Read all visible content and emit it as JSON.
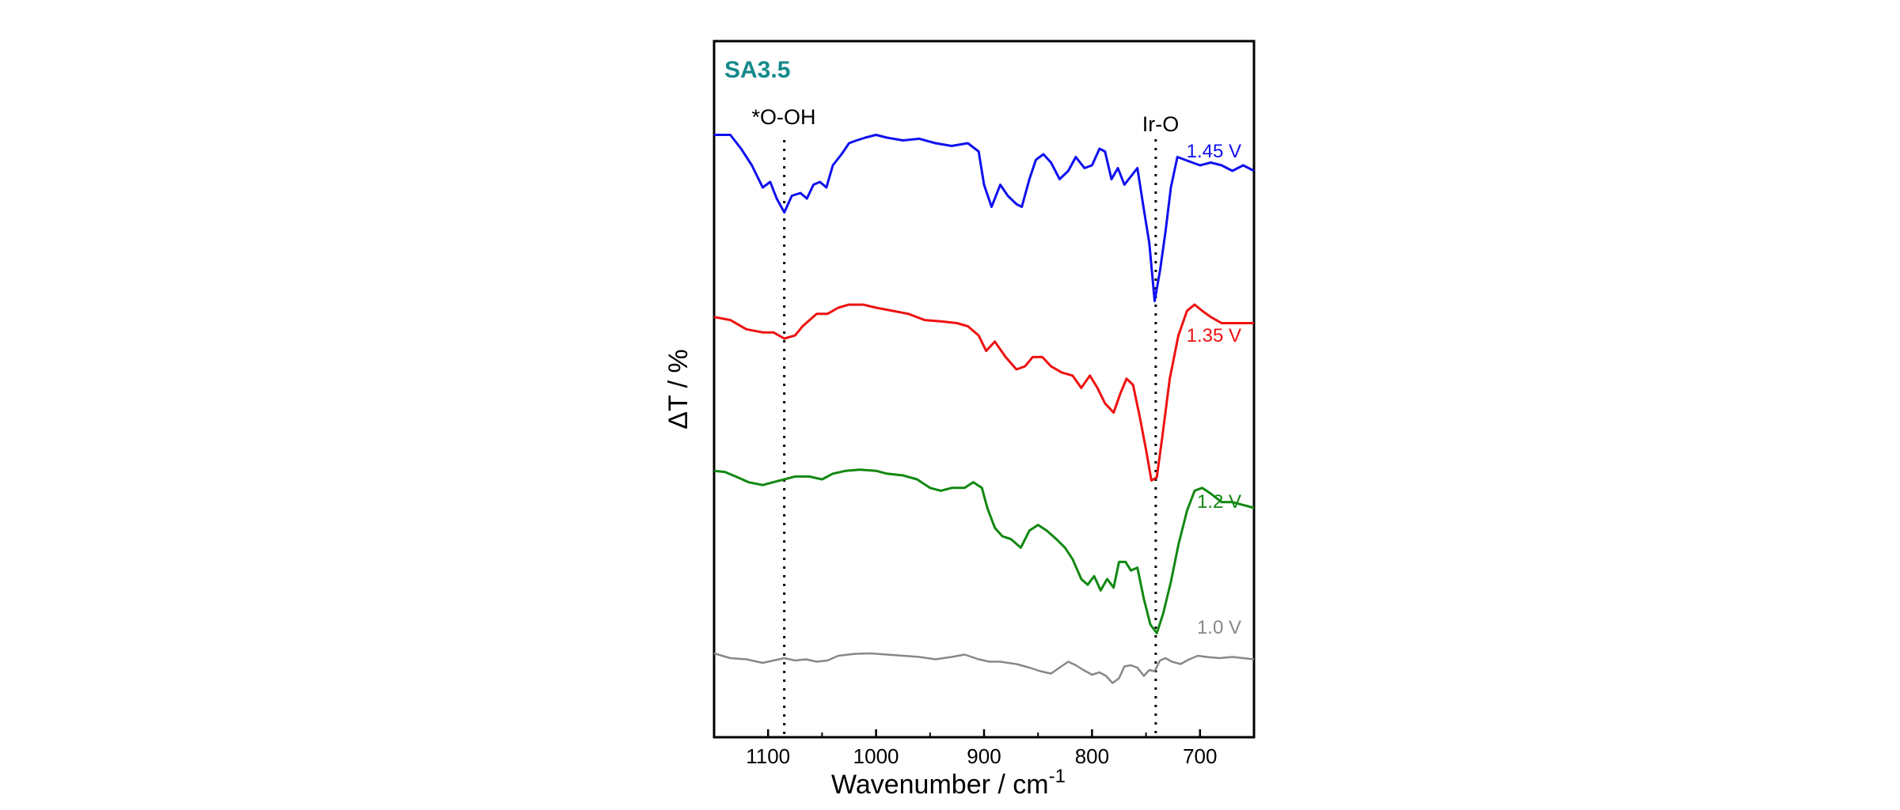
{
  "chart_data": {
    "type": "line",
    "panel_label": "SA3.5",
    "panel_label_color": "#148a8a",
    "xlabel": "Wavenumber / cm",
    "xlabel_superscript": "-1",
    "ylabel": "ΔT / %",
    "xlim": [
      1150,
      650
    ],
    "x_reversed": true,
    "y_ticks_shown": false,
    "grid": false,
    "x_ticks": [
      1100,
      1000,
      900,
      800,
      700
    ],
    "annotations": [
      {
        "id": "ooh",
        "text": "*O-OH",
        "x": 1085
      },
      {
        "id": "iro",
        "text": "Ir-O",
        "x": 741
      }
    ],
    "series": [
      {
        "name": "1.45 V",
        "color": "#1010ee",
        "points": [
          [
            1150,
            1.85
          ],
          [
            1135,
            1.85
          ],
          [
            1125,
            1.6
          ],
          [
            1115,
            1.3
          ],
          [
            1105,
            0.9
          ],
          [
            1098,
            1.0
          ],
          [
            1092,
            0.7
          ],
          [
            1085,
            0.45
          ],
          [
            1078,
            0.75
          ],
          [
            1070,
            0.8
          ],
          [
            1064,
            0.7
          ],
          [
            1058,
            0.95
          ],
          [
            1052,
            1.0
          ],
          [
            1046,
            0.9
          ],
          [
            1040,
            1.3
          ],
          [
            1032,
            1.5
          ],
          [
            1025,
            1.7
          ],
          [
            1018,
            1.75
          ],
          [
            1010,
            1.8
          ],
          [
            1000,
            1.85
          ],
          [
            990,
            1.8
          ],
          [
            975,
            1.75
          ],
          [
            960,
            1.78
          ],
          [
            945,
            1.7
          ],
          [
            930,
            1.65
          ],
          [
            915,
            1.7
          ],
          [
            905,
            1.55
          ],
          [
            900,
            0.95
          ],
          [
            893,
            0.55
          ],
          [
            885,
            0.95
          ],
          [
            878,
            0.75
          ],
          [
            870,
            0.6
          ],
          [
            865,
            0.55
          ],
          [
            858,
            1.05
          ],
          [
            852,
            1.4
          ],
          [
            845,
            1.5
          ],
          [
            838,
            1.35
          ],
          [
            830,
            1.05
          ],
          [
            822,
            1.2
          ],
          [
            815,
            1.45
          ],
          [
            807,
            1.25
          ],
          [
            800,
            1.3
          ],
          [
            793,
            1.6
          ],
          [
            788,
            1.55
          ],
          [
            782,
            1.05
          ],
          [
            776,
            1.25
          ],
          [
            770,
            0.95
          ],
          [
            764,
            1.1
          ],
          [
            758,
            1.25
          ],
          [
            752,
            0.5
          ],
          [
            747,
            -0.1
          ],
          [
            742,
            -1.15
          ],
          [
            737,
            -0.6
          ],
          [
            732,
            0.1
          ],
          [
            727,
            0.9
          ],
          [
            721,
            1.45
          ],
          [
            714,
            1.4
          ],
          [
            700,
            1.3
          ],
          [
            690,
            1.35
          ],
          [
            680,
            1.3
          ],
          [
            670,
            1.2
          ],
          [
            660,
            1.3
          ],
          [
            650,
            1.2
          ]
        ]
      },
      {
        "name": "1.35 V",
        "color": "#ee1111",
        "points": [
          [
            1150,
            1.85
          ],
          [
            1135,
            1.8
          ],
          [
            1120,
            1.65
          ],
          [
            1105,
            1.6
          ],
          [
            1095,
            1.6
          ],
          [
            1085,
            1.5
          ],
          [
            1075,
            1.55
          ],
          [
            1068,
            1.7
          ],
          [
            1055,
            1.9
          ],
          [
            1045,
            1.9
          ],
          [
            1035,
            2.0
          ],
          [
            1025,
            2.05
          ],
          [
            1012,
            2.05
          ],
          [
            1000,
            2.0
          ],
          [
            985,
            1.95
          ],
          [
            970,
            1.9
          ],
          [
            955,
            1.8
          ],
          [
            940,
            1.78
          ],
          [
            925,
            1.75
          ],
          [
            915,
            1.7
          ],
          [
            905,
            1.55
          ],
          [
            898,
            1.3
          ],
          [
            890,
            1.45
          ],
          [
            880,
            1.2
          ],
          [
            870,
            1.0
          ],
          [
            862,
            1.05
          ],
          [
            855,
            1.2
          ],
          [
            846,
            1.2
          ],
          [
            838,
            1.05
          ],
          [
            828,
            0.95
          ],
          [
            818,
            0.9
          ],
          [
            810,
            0.7
          ],
          [
            802,
            0.9
          ],
          [
            795,
            0.7
          ],
          [
            788,
            0.45
          ],
          [
            780,
            0.3
          ],
          [
            774,
            0.6
          ],
          [
            768,
            0.85
          ],
          [
            762,
            0.75
          ],
          [
            756,
            0.25
          ],
          [
            750,
            -0.3
          ],
          [
            745,
            -0.8
          ],
          [
            740,
            -0.75
          ],
          [
            735,
            -0.1
          ],
          [
            728,
            0.85
          ],
          [
            720,
            1.55
          ],
          [
            712,
            1.95
          ],
          [
            705,
            2.05
          ],
          [
            698,
            1.95
          ],
          [
            690,
            1.85
          ],
          [
            680,
            1.75
          ],
          [
            670,
            1.75
          ],
          [
            650,
            1.75
          ]
        ]
      },
      {
        "name": "1.2 V",
        "color": "#128812",
        "points": [
          [
            1150,
            1.9
          ],
          [
            1140,
            1.88
          ],
          [
            1130,
            1.8
          ],
          [
            1118,
            1.7
          ],
          [
            1105,
            1.65
          ],
          [
            1095,
            1.7
          ],
          [
            1085,
            1.75
          ],
          [
            1075,
            1.8
          ],
          [
            1062,
            1.8
          ],
          [
            1050,
            1.75
          ],
          [
            1040,
            1.85
          ],
          [
            1028,
            1.9
          ],
          [
            1015,
            1.92
          ],
          [
            1000,
            1.9
          ],
          [
            990,
            1.85
          ],
          [
            975,
            1.82
          ],
          [
            962,
            1.75
          ],
          [
            950,
            1.6
          ],
          [
            940,
            1.55
          ],
          [
            930,
            1.6
          ],
          [
            918,
            1.6
          ],
          [
            910,
            1.7
          ],
          [
            902,
            1.6
          ],
          [
            897,
            1.25
          ],
          [
            890,
            0.9
          ],
          [
            883,
            0.75
          ],
          [
            875,
            0.7
          ],
          [
            866,
            0.55
          ],
          [
            858,
            0.85
          ],
          [
            850,
            0.95
          ],
          [
            842,
            0.85
          ],
          [
            833,
            0.7
          ],
          [
            825,
            0.55
          ],
          [
            818,
            0.35
          ],
          [
            810,
            0.0
          ],
          [
            804,
            -0.1
          ],
          [
            798,
            0.05
          ],
          [
            792,
            -0.2
          ],
          [
            786,
            0.0
          ],
          [
            780,
            -0.15
          ],
          [
            775,
            0.3
          ],
          [
            769,
            0.3
          ],
          [
            764,
            0.15
          ],
          [
            758,
            0.2
          ],
          [
            752,
            -0.35
          ],
          [
            746,
            -0.8
          ],
          [
            740,
            -0.95
          ],
          [
            734,
            -0.6
          ],
          [
            727,
            -0.05
          ],
          [
            720,
            0.6
          ],
          [
            712,
            1.2
          ],
          [
            705,
            1.55
          ],
          [
            698,
            1.6
          ],
          [
            690,
            1.5
          ],
          [
            680,
            1.35
          ],
          [
            670,
            1.35
          ],
          [
            660,
            1.3
          ],
          [
            650,
            1.25
          ]
        ]
      },
      {
        "name": "1.0 V",
        "color": "#888888",
        "points": [
          [
            1150,
            1.8
          ],
          [
            1135,
            1.6
          ],
          [
            1120,
            1.55
          ],
          [
            1105,
            1.4
          ],
          [
            1095,
            1.5
          ],
          [
            1085,
            1.6
          ],
          [
            1075,
            1.5
          ],
          [
            1065,
            1.55
          ],
          [
            1055,
            1.45
          ],
          [
            1045,
            1.5
          ],
          [
            1035,
            1.7
          ],
          [
            1020,
            1.78
          ],
          [
            1005,
            1.8
          ],
          [
            990,
            1.75
          ],
          [
            975,
            1.7
          ],
          [
            960,
            1.65
          ],
          [
            945,
            1.55
          ],
          [
            930,
            1.65
          ],
          [
            918,
            1.75
          ],
          [
            905,
            1.55
          ],
          [
            895,
            1.45
          ],
          [
            885,
            1.45
          ],
          [
            870,
            1.35
          ],
          [
            858,
            1.2
          ],
          [
            848,
            1.05
          ],
          [
            838,
            0.95
          ],
          [
            830,
            1.2
          ],
          [
            822,
            1.45
          ],
          [
            815,
            1.3
          ],
          [
            808,
            1.1
          ],
          [
            800,
            0.9
          ],
          [
            793,
            1.0
          ],
          [
            787,
            0.85
          ],
          [
            781,
            0.55
          ],
          [
            775,
            0.75
          ],
          [
            770,
            1.25
          ],
          [
            764,
            1.3
          ],
          [
            758,
            1.2
          ],
          [
            752,
            0.85
          ],
          [
            747,
            1.1
          ],
          [
            742,
            1.05
          ],
          [
            737,
            1.5
          ],
          [
            732,
            1.6
          ],
          [
            726,
            1.45
          ],
          [
            718,
            1.35
          ],
          [
            710,
            1.55
          ],
          [
            702,
            1.7
          ],
          [
            694,
            1.65
          ],
          [
            682,
            1.6
          ],
          [
            670,
            1.65
          ],
          [
            660,
            1.6
          ],
          [
            650,
            1.55
          ]
        ]
      }
    ]
  }
}
